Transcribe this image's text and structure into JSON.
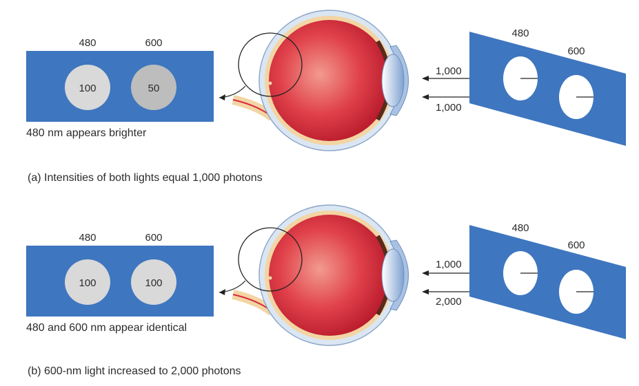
{
  "panels": [
    {
      "left_labels": [
        "480",
        "600"
      ],
      "spot_values": [
        "100",
        "50"
      ],
      "spot_colors": [
        "#d9d9d9",
        "#bdbdbd"
      ],
      "appearance_text": "480 nm appears brighter",
      "intensities": [
        "1,000",
        "1,000"
      ],
      "screen_labels": [
        "480",
        "600"
      ],
      "caption": "(a)  Intensities of both lights equal 1,000 photons"
    },
    {
      "left_labels": [
        "480",
        "600"
      ],
      "spot_values": [
        "100",
        "100"
      ],
      "spot_colors": [
        "#d9d9d9",
        "#d9d9d9"
      ],
      "appearance_text": "480 and 600 nm appear identical",
      "intensities": [
        "1,000",
        "2,000"
      ],
      "screen_labels": [
        "480",
        "600"
      ],
      "caption": "(b)  600-nm light increased to 2,000 photons"
    }
  ],
  "colors": {
    "field_blue": "#3e76bf",
    "eye_red": "#d8283a",
    "sclera_blue": "#dbe6f3",
    "choroid_yellow": "#f3d5a4"
  }
}
